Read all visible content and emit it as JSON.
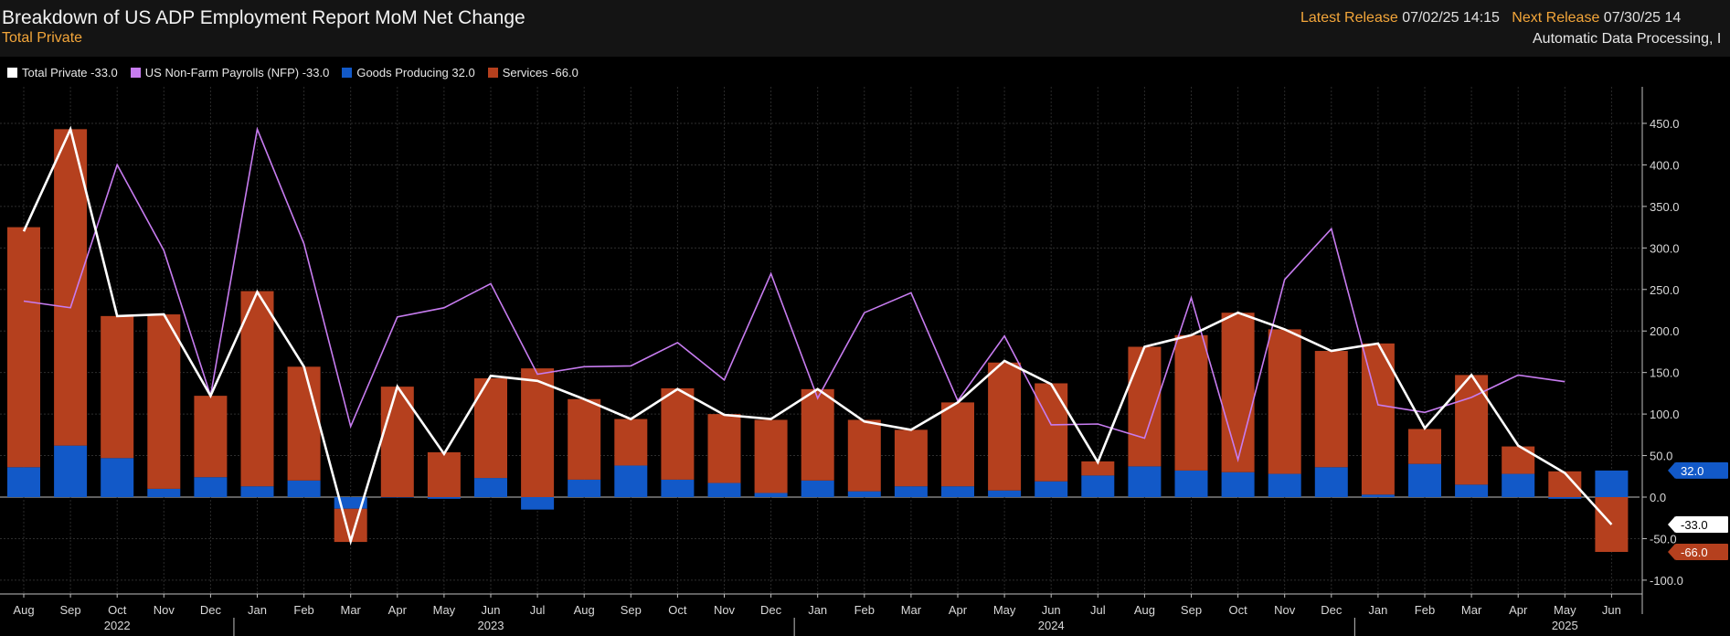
{
  "header": {
    "title": "Breakdown of US ADP Employment Report MoM Net Change",
    "subtitle": "Total Private",
    "latest_release_label": "Latest Release",
    "latest_release_value": "07/02/25 14:15",
    "next_release_label": "Next Release",
    "next_release_value": "07/30/25 14",
    "source": "Automatic Data Processing, I"
  },
  "legend": [
    {
      "label": "Total Private -33.0",
      "color": "#ffffff"
    },
    {
      "label": "US Non-Farm Payrolls (NFP) -33.0",
      "color": "#c77cf0"
    },
    {
      "label": "Goods Producing 32.0",
      "color": "#1259c8"
    },
    {
      "label": "Services -66.0",
      "color": "#b5401e"
    }
  ],
  "chart_data": {
    "type": "bar",
    "stacked": true,
    "categories": [
      "Aug",
      "Sep",
      "Oct",
      "Nov",
      "Dec",
      "Jan",
      "Feb",
      "Mar",
      "Apr",
      "May",
      "Jun",
      "Jul",
      "Aug",
      "Sep",
      "Oct",
      "Nov",
      "Dec",
      "Jan",
      "Feb",
      "Mar",
      "Apr",
      "May",
      "Jun",
      "Jul",
      "Aug",
      "Sep",
      "Oct",
      "Nov",
      "Dec",
      "Jan",
      "Feb",
      "Mar",
      "Apr",
      "May",
      "Jun"
    ],
    "year_labels": [
      {
        "label": "2022",
        "at_index": 2
      },
      {
        "label": "2023",
        "at_index": 10
      },
      {
        "label": "2024",
        "at_index": 22
      },
      {
        "label": "2025",
        "at_index": 33
      }
    ],
    "year_boundaries_before_index": [
      5,
      17,
      29
    ],
    "series": [
      {
        "name": "Goods Producing",
        "kind": "bar",
        "color": "#1259c8",
        "values": [
          36,
          62,
          47,
          10,
          24,
          13,
          20,
          -14,
          0,
          -2,
          23,
          -15,
          21,
          38,
          21,
          17,
          5,
          20,
          7,
          13,
          13,
          8,
          19,
          26,
          37,
          32,
          30,
          28,
          36,
          3,
          40,
          15,
          28,
          -2,
          32
        ]
      },
      {
        "name": "Services",
        "kind": "bar",
        "color": "#b5401e",
        "values": [
          289,
          381,
          171,
          210,
          98,
          235,
          137,
          -40,
          133,
          54,
          120,
          155,
          97,
          56,
          110,
          83,
          88,
          110,
          86,
          68,
          101,
          154,
          118,
          17,
          144,
          163,
          192,
          174,
          140,
          182,
          42,
          132,
          33,
          31,
          -66
        ]
      },
      {
        "name": "Total Private",
        "kind": "line",
        "color": "#ffffff",
        "values": [
          320,
          443,
          218,
          220,
          122,
          247,
          157,
          -53,
          133,
          52,
          146,
          140,
          118,
          94,
          130,
          99,
          94,
          130,
          91,
          81,
          114,
          164,
          136,
          42,
          181,
          195,
          222,
          202,
          176,
          185,
          83,
          147,
          62,
          29,
          -33
        ]
      },
      {
        "name": "US Non-Farm Payrolls (NFP)",
        "kind": "line",
        "color": "#c77cf0",
        "values": [
          236,
          228,
          400,
          297,
          122,
          443,
          305,
          85,
          217,
          228,
          257,
          148,
          157,
          158,
          186,
          141,
          269,
          119,
          222,
          246,
          116,
          194,
          87,
          88,
          71,
          240,
          45,
          262,
          323,
          111,
          102,
          120,
          147,
          139,
          null
        ]
      }
    ],
    "ylim": [
      -115,
      490
    ],
    "yticks": [
      -100,
      -50,
      0,
      50,
      100,
      150,
      200,
      250,
      300,
      350,
      400,
      450
    ],
    "ytick_labels": [
      "-100.0",
      "-50.0",
      "0.0",
      "50.0",
      "100.0",
      "150.0",
      "200.0",
      "250.0",
      "300.0",
      "350.0",
      "400.0",
      "450.0"
    ],
    "last_value_tags": [
      {
        "label": "32.0",
        "value": 32,
        "bg": "#1259c8",
        "fg": "#ffffff"
      },
      {
        "label": "-33.0",
        "value": -33,
        "bg": "#ffffff",
        "fg": "#000000"
      },
      {
        "label": "-66.0",
        "value": -66,
        "bg": "#b5401e",
        "fg": "#ffffff"
      }
    ],
    "grid": true
  }
}
